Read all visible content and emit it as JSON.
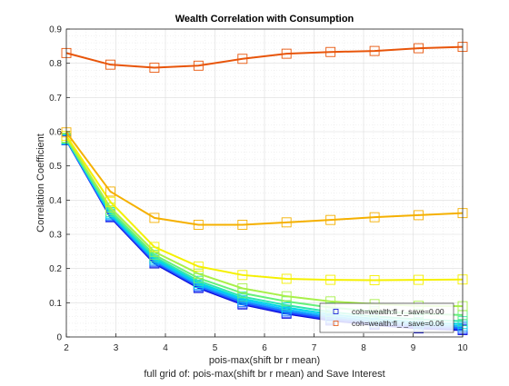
{
  "chart_data": {
    "type": "line",
    "title": "Wealth Correlation with Consumption",
    "xlabel": "pois-max(shift br r mean)",
    "ylabel": "Correlation Coefficient",
    "caption": "full grid of: pois-max(shift br r mean) and Save Interest",
    "xlim": [
      2,
      10
    ],
    "ylim": [
      0,
      0.9
    ],
    "xticks": [
      2,
      3,
      4,
      5,
      6,
      7,
      8,
      9,
      10
    ],
    "yticks": [
      0,
      0.1,
      0.2,
      0.3,
      0.4,
      0.5,
      0.6,
      0.7,
      0.8,
      0.9
    ],
    "grid": true,
    "minor_grid": true,
    "legend_position": "lower-right",
    "x": [
      2,
      2.889,
      3.778,
      4.667,
      5.556,
      6.444,
      7.333,
      8.222,
      9.111,
      10
    ],
    "series": [
      {
        "name": "coh=wealth:fl_r_save=0.00",
        "color": "#0a0ad6",
        "values": [
          0.575,
          0.35,
          0.215,
          0.143,
          0.095,
          0.068,
          0.048,
          0.035,
          0.025,
          0.02
        ]
      },
      {
        "color": "#1f3bff",
        "values": [
          0.575,
          0.352,
          0.218,
          0.146,
          0.098,
          0.071,
          0.051,
          0.038,
          0.028,
          0.023
        ]
      },
      {
        "color": "#1f78ff",
        "values": [
          0.576,
          0.355,
          0.221,
          0.149,
          0.102,
          0.075,
          0.055,
          0.042,
          0.032,
          0.027
        ]
      },
      {
        "color": "#12b3ff",
        "values": [
          0.577,
          0.358,
          0.225,
          0.153,
          0.107,
          0.08,
          0.06,
          0.047,
          0.037,
          0.032
        ]
      },
      {
        "color": "#00d6e6",
        "values": [
          0.578,
          0.361,
          0.229,
          0.158,
          0.112,
          0.086,
          0.066,
          0.053,
          0.043,
          0.038
        ]
      },
      {
        "color": "#2ee6b0",
        "values": [
          0.579,
          0.365,
          0.234,
          0.164,
          0.118,
          0.093,
          0.073,
          0.06,
          0.051,
          0.046
        ]
      },
      {
        "color": "#66f07a",
        "values": [
          0.581,
          0.37,
          0.24,
          0.172,
          0.128,
          0.104,
          0.086,
          0.075,
          0.068,
          0.064
        ]
      },
      {
        "color": "#a8f04a",
        "values": [
          0.583,
          0.378,
          0.249,
          0.185,
          0.142,
          0.119,
          0.104,
          0.096,
          0.091,
          0.09
        ]
      },
      {
        "color": "#f5f000",
        "values": [
          0.588,
          0.395,
          0.263,
          0.206,
          0.181,
          0.17,
          0.167,
          0.166,
          0.167,
          0.168
        ]
      },
      {
        "color": "#f5b000",
        "values": [
          0.598,
          0.425,
          0.348,
          0.328,
          0.328,
          0.335,
          0.342,
          0.35,
          0.356,
          0.362
        ]
      },
      {
        "name": "coh=wealth:fl_r_save=0.06",
        "color": "#e8550a",
        "values": [
          0.83,
          0.796,
          0.787,
          0.793,
          0.813,
          0.828,
          0.833,
          0.836,
          0.844,
          0.848
        ]
      }
    ]
  }
}
